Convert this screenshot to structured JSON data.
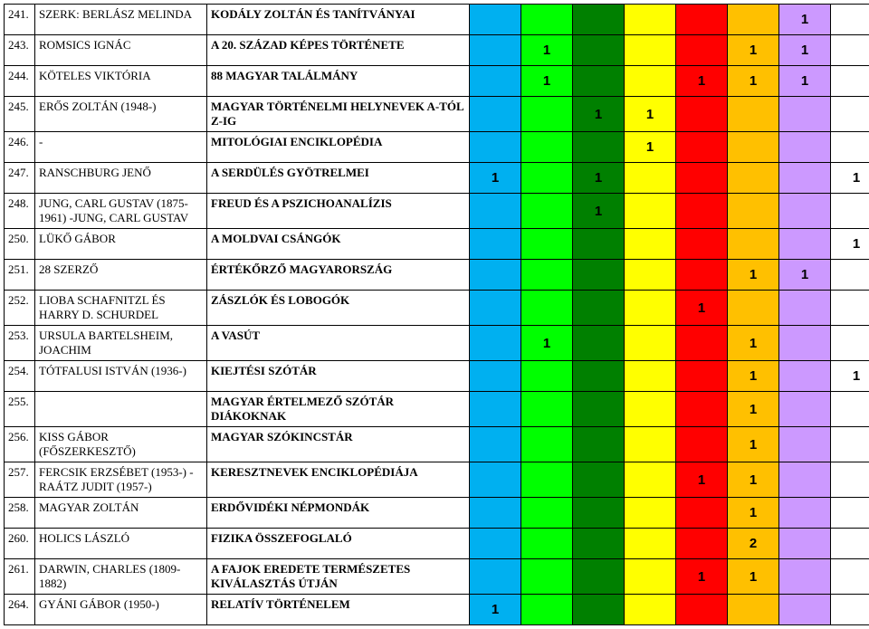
{
  "colors": {
    "c1": "#00b0f0",
    "c2": "#00ff00",
    "c3": "#008000",
    "c4": "#ffff00",
    "c5": "#ff0000",
    "c6": "#ffc000",
    "c7": "#cc99ff",
    "c8": "#ffffff"
  },
  "rows": [
    {
      "num": "241.",
      "author": "SZERK: BERLÁSZ MELINDA",
      "title": "KODÁLY ZOLTÁN ÉS TANÍTVÁNYAI",
      "cells": [
        "",
        "",
        "",
        "",
        "",
        "",
        "1",
        ""
      ]
    },
    {
      "num": "243.",
      "author": "ROMSICS IGNÁC",
      "title": "A 20. SZÁZAD KÉPES TÖRTÉNETE",
      "cells": [
        "",
        "1",
        "",
        "",
        "",
        "1",
        "1",
        ""
      ]
    },
    {
      "num": "244.",
      "author": "KÖTELES VIKTÓRIA",
      "title": "88 MAGYAR TALÁLMÁNY",
      "cells": [
        "",
        "1",
        "",
        "",
        "1",
        "1",
        "1",
        ""
      ]
    },
    {
      "num": "245.",
      "author": "ERŐS ZOLTÁN (1948-)",
      "title": "MAGYAR TÖRTÉNELMI HELYNEVEK A-TÓL Z-IG",
      "cells": [
        "",
        "",
        "1",
        "1",
        "",
        "",
        "",
        ""
      ]
    },
    {
      "num": "246.",
      "author": "-",
      "title": "MITOLÓGIAI ENCIKLOPÉDIA",
      "cells": [
        "",
        "",
        "",
        "1",
        "",
        "",
        "",
        ""
      ]
    },
    {
      "num": "247.",
      "author": "RANSCHBURG JENŐ",
      "title": "A SERDÜLÉS GYÖTRELMEI",
      "cells": [
        "1",
        "",
        "1",
        "",
        "",
        "",
        "",
        "1"
      ]
    },
    {
      "num": "248.",
      "author": "JUNG, CARL GUSTAV (1875-1961) -JUNG, CARL GUSTAV",
      "title": "FREUD ÉS A PSZICHOANALÍZIS",
      "cells": [
        "",
        "",
        "1",
        "",
        "",
        "",
        "",
        ""
      ]
    },
    {
      "num": "250.",
      "author": "LÜKŐ GÁBOR",
      "title": "A MOLDVAI CSÁNGÓK",
      "cells": [
        "",
        "",
        "",
        "",
        "",
        "",
        "",
        "1"
      ]
    },
    {
      "num": "251.",
      "author": "28 SZERZŐ",
      "title": "ÉRTÉKŐRZŐ MAGYARORSZÁG",
      "cells": [
        "",
        "",
        "",
        "",
        "",
        "1",
        "1",
        ""
      ]
    },
    {
      "num": "252.",
      "author": "LIOBA SCHAFNITZL ÉS HARRY D. SCHURDEL",
      "title": "ZÁSZLÓK ÉS LOBOGÓK",
      "cells": [
        "",
        "",
        "",
        "",
        "1",
        "",
        "",
        ""
      ]
    },
    {
      "num": "253.",
      "author": "URSULA BARTELSHEIM, JOACHIM",
      "title": "A VASÚT",
      "cells": [
        "",
        "1",
        "",
        "",
        "",
        "1",
        "",
        ""
      ]
    },
    {
      "num": "254.",
      "author": "TÓTFALUSI ISTVÁN (1936-)",
      "title": "KIEJTÉSI SZÓTÁR",
      "cells": [
        "",
        "",
        "",
        "",
        "",
        "1",
        "",
        "1"
      ]
    },
    {
      "num": "255.",
      "author": "",
      "title": "MAGYAR ÉRTELMEZŐ SZÓTÁR DIÁKOKNAK",
      "cells": [
        "",
        "",
        "",
        "",
        "",
        "1",
        "",
        ""
      ]
    },
    {
      "num": "256.",
      "author": "KISS GÁBOR (FŐSZERKESZTŐ)",
      "title": "MAGYAR SZÓKINCSTÁR",
      "cells": [
        "",
        "",
        "",
        "",
        "",
        "1",
        "",
        ""
      ]
    },
    {
      "num": "257.",
      "author": "FERCSIK ERZSÉBET (1953-) - RAÁTZ JUDIT (1957-)",
      "title": "KERESZTNEVEK ENCIKLOPÉDIÁJA",
      "cells": [
        "",
        "",
        "",
        "",
        "1",
        "1",
        "",
        ""
      ]
    },
    {
      "num": "258.",
      "author": "MAGYAR ZOLTÁN",
      "title": "ERDŐVIDÉKI NÉPMONDÁK",
      "cells": [
        "",
        "",
        "",
        "",
        "",
        "1",
        "",
        ""
      ]
    },
    {
      "num": "260.",
      "author": "HOLICS LÁSZLÓ",
      "title": "FIZIKA ÖSSZEFOGLALÓ",
      "cells": [
        "",
        "",
        "",
        "",
        "",
        "2",
        "",
        ""
      ]
    },
    {
      "num": "261.",
      "author": "DARWIN, CHARLES (1809-1882)",
      "title": "A FAJOK EREDETE TERMÉSZETES KIVÁLASZTÁS ÚTJÁN",
      "cells": [
        "",
        "",
        "",
        "",
        "1",
        "1",
        "",
        ""
      ]
    },
    {
      "num": "264.",
      "author": "GYÁNI GÁBOR (1950-)",
      "title": "RELATÍV TÖRTÉNELEM",
      "cells": [
        "1",
        "",
        "",
        "",
        "",
        "",
        "",
        ""
      ]
    }
  ]
}
